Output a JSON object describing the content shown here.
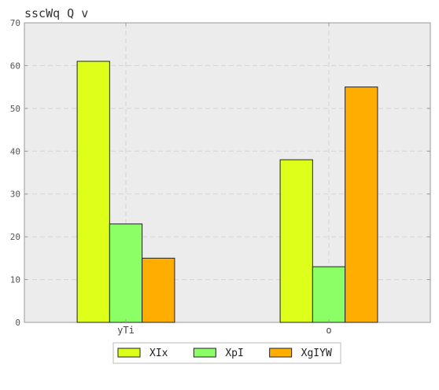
{
  "chart_data": {
    "type": "bar",
    "title": "sscWq  Q v",
    "xlabel": "",
    "ylabel": "",
    "categories": [
      "yTi",
      "o"
    ],
    "ylim": [
      0,
      70
    ],
    "yticks": [
      0,
      10,
      20,
      30,
      40,
      50,
      60,
      70
    ],
    "grid": true,
    "legend_position": "bottom-center",
    "series": [
      {
        "name": "XIx",
        "values": [
          61,
          38
        ],
        "color": "#ddff1a"
      },
      {
        "name": "XpI",
        "values": [
          23,
          13
        ],
        "color": "#8dff66"
      },
      {
        "name": "XgIYW",
        "values": [
          15,
          55
        ],
        "color": "#ffae00"
      }
    ]
  },
  "colors": {
    "plot_background": "#ececec",
    "grid": "#d4d4d4",
    "axis": "#999999",
    "bar_edge": "#222222"
  }
}
